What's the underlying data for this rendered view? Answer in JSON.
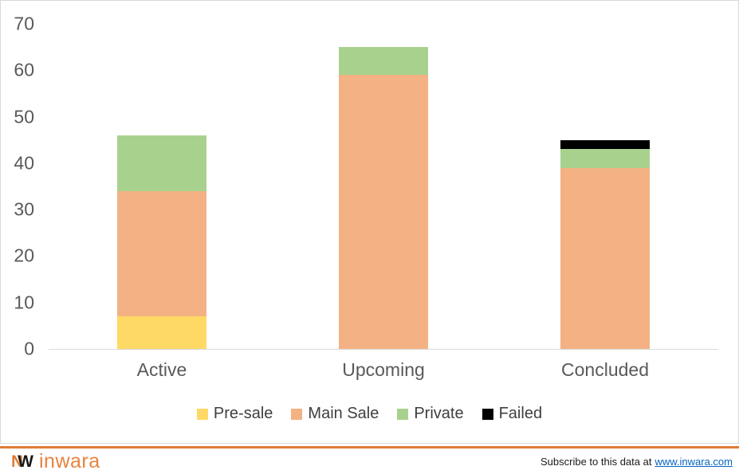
{
  "chart_data": {
    "type": "bar",
    "subtype": "stacked",
    "title": "",
    "categories": [
      "Active",
      "Upcoming",
      "Concluded"
    ],
    "series": [
      {
        "name": "Pre-sale",
        "color": "#FFD966",
        "values": [
          7,
          0,
          0
        ]
      },
      {
        "name": "Main Sale",
        "color": "#F4B183",
        "values": [
          27,
          59,
          39
        ]
      },
      {
        "name": "Private",
        "color": "#A9D18E",
        "values": [
          12,
          6,
          4
        ]
      },
      {
        "name": "Failed",
        "color": "#000000",
        "values": [
          0,
          0,
          2
        ]
      }
    ],
    "totals": {
      "Active": 46,
      "Upcoming": 65,
      "Concluded": 45
    },
    "xlabel": "",
    "ylabel": "",
    "ylim": [
      0,
      70
    ],
    "yticks": [
      0,
      10,
      20,
      30,
      40,
      50,
      60,
      70
    ],
    "gridlines": false,
    "legend_position": "bottom"
  },
  "footer": {
    "logo_monogram_left": "N",
    "logo_monogram_right": "W",
    "logo_wordmark": "inwara",
    "subscribe_text": "Subscribe to this data at",
    "subscribe_link": "www.inwara.com"
  },
  "colors": {
    "brand_orange": "#DD7D36",
    "wordmark_orange": "#E8833C",
    "axis_text": "#595959",
    "legend_text": "#3F3F3F",
    "axis_line": "#D9D9D9",
    "chart_border": "#D9D9D9",
    "link_blue": "#0563C1"
  }
}
